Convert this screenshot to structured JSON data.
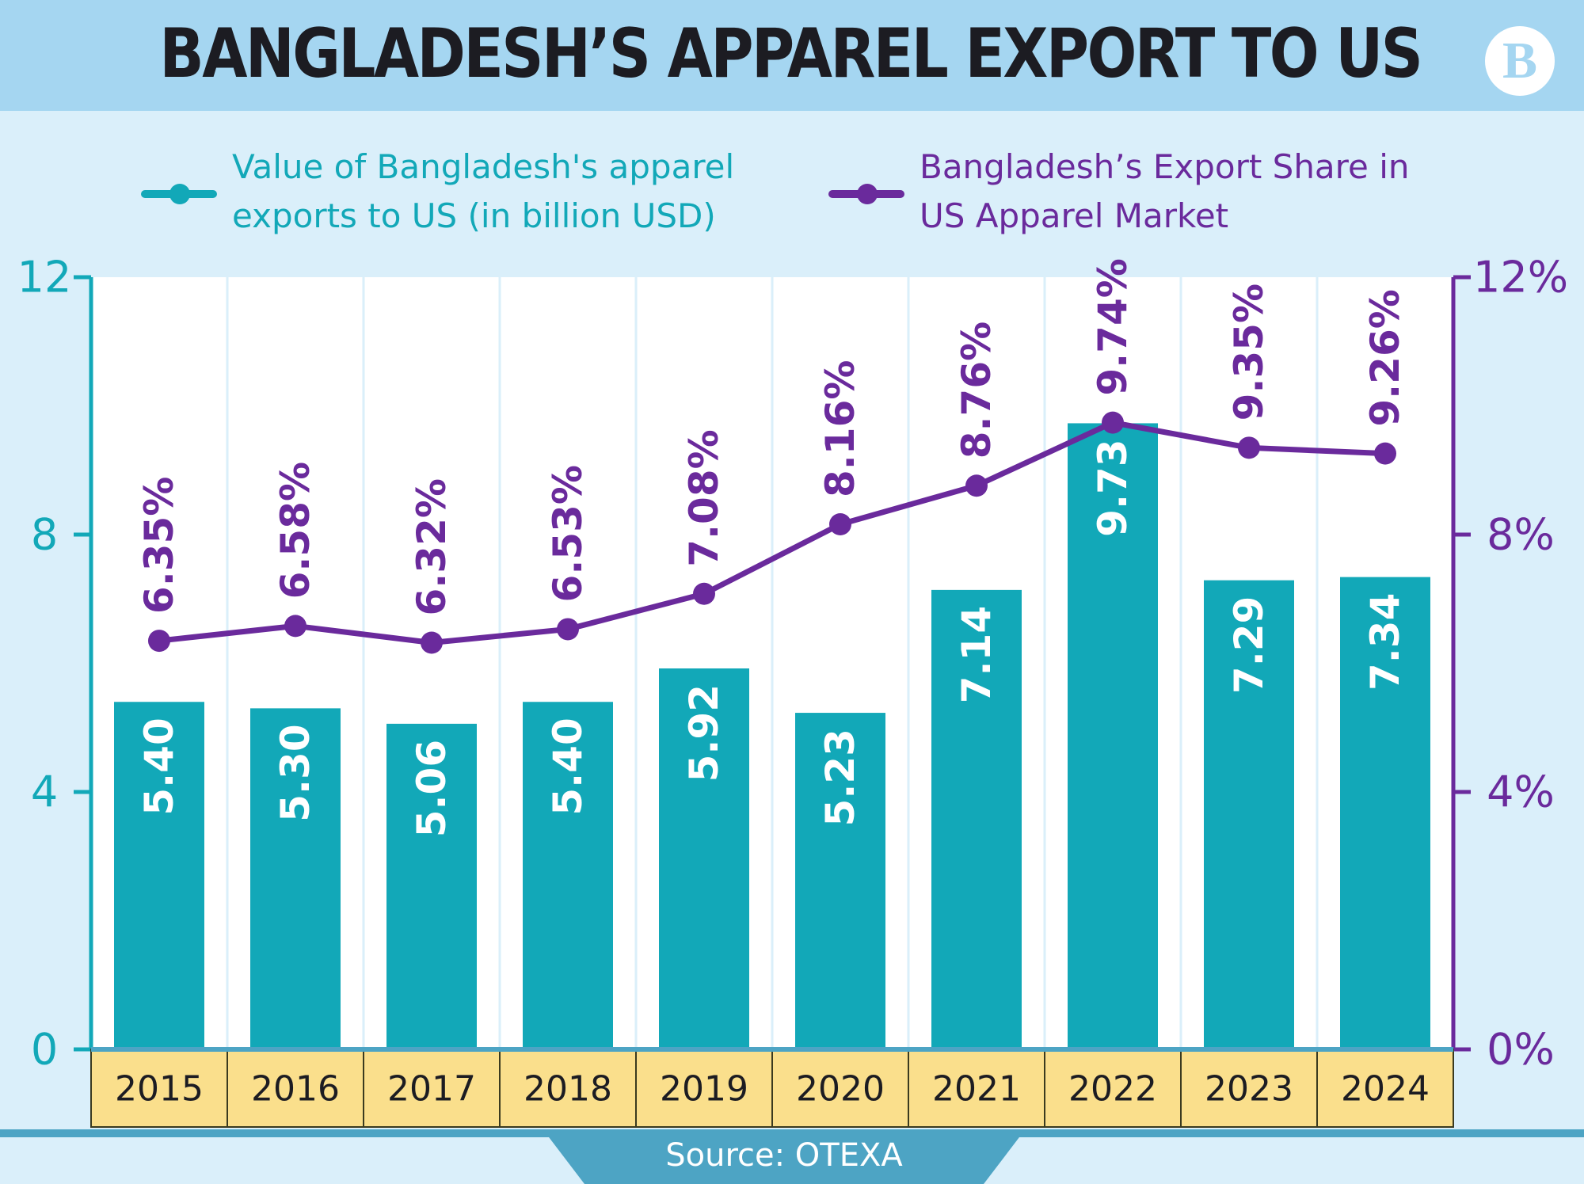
{
  "title": "BANGLADESH’S APPAREL EXPORT TO US",
  "logo_text": "B",
  "legend": {
    "bars_label": "Value of Bangladesh's apparel exports to US (in billion USD)",
    "line_label": "Bangladesh’s Export Share in US Apparel Market"
  },
  "source": "Source: OTEXA",
  "colors": {
    "bar": "#12a8b8",
    "line": "#6a2a9c",
    "category_band": "#fadf8c",
    "header": "#a5d6f1",
    "background": "#daeffa"
  },
  "chart_data": {
    "type": "bar",
    "categories": [
      "2015",
      "2016",
      "2017",
      "2018",
      "2019",
      "2020",
      "2021",
      "2022",
      "2023",
      "2024"
    ],
    "series": [
      {
        "name": "Value of Bangladesh's apparel exports to US (in billion USD)",
        "type": "bar",
        "axis": "left",
        "values": [
          5.4,
          5.3,
          5.06,
          5.4,
          5.92,
          5.23,
          7.14,
          9.73,
          7.29,
          7.34
        ],
        "labels": [
          "5.40",
          "5.30",
          "5.06",
          "5.40",
          "5.92",
          "5.23",
          "7.14",
          "9.73",
          "7.29",
          "7.34"
        ]
      },
      {
        "name": "Bangladesh’s Export Share in US Apparel Market",
        "type": "line",
        "axis": "right",
        "values": [
          6.35,
          6.58,
          6.32,
          6.53,
          7.08,
          8.16,
          8.76,
          9.74,
          9.35,
          9.26
        ],
        "labels": [
          "6.35%",
          "6.58%",
          "6.32%",
          "6.53%",
          "7.08%",
          "8.16%",
          "8.76%",
          "9.74%",
          "9.35%",
          "9.26%"
        ]
      }
    ],
    "y_left": {
      "ylim": [
        0,
        12
      ],
      "ticks": [
        "0",
        "4",
        "8",
        "12"
      ]
    },
    "y_right": {
      "ylim": [
        0,
        12
      ],
      "ticks": [
        "0%",
        "4%",
        "8%",
        "12%"
      ]
    },
    "grid": "vertical",
    "legend_position": "top"
  }
}
